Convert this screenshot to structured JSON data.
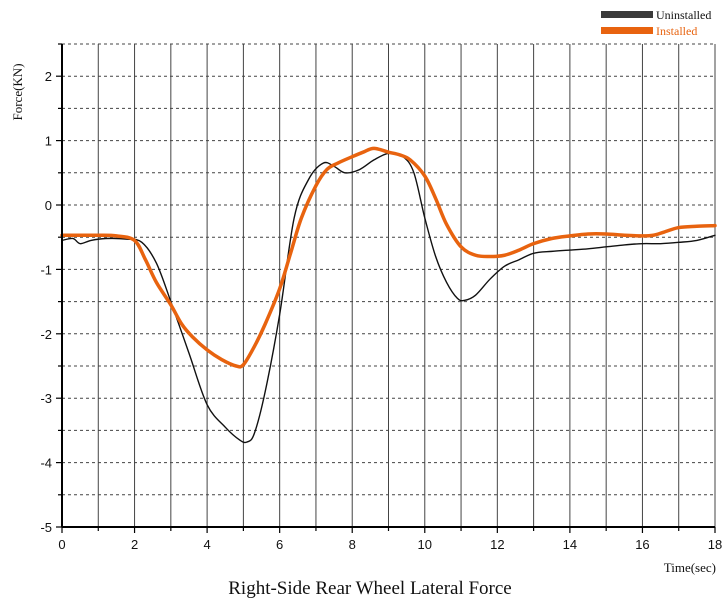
{
  "chart_data": {
    "type": "line",
    "title": "Right-Side Rear Wheel Lateral Force",
    "xlabel": "Time(sec)",
    "ylabel": "Force(KN)",
    "xlim": [
      0,
      18
    ],
    "ylim": [
      -5,
      2.5
    ],
    "x_ticks": [
      0,
      2,
      4,
      6,
      8,
      10,
      12,
      14,
      16,
      18
    ],
    "y_ticks": [
      -5,
      -4,
      -3,
      -2,
      -1,
      0,
      1,
      2
    ],
    "grid": "on",
    "legend_position": "top-right",
    "series": [
      {
        "name": "Uninstalled",
        "color": "#111111",
        "x": [
          0,
          0.3,
          0.5,
          0.8,
          1.2,
          1.8,
          2.2,
          2.6,
          3.0,
          3.5,
          4.0,
          4.5,
          4.9,
          5.1,
          5.3,
          5.6,
          6.0,
          6.4,
          6.8,
          7.2,
          7.5,
          7.8,
          8.2,
          8.6,
          9.0,
          9.4,
          9.7,
          10.0,
          10.3,
          10.6,
          10.9,
          11.1,
          11.4,
          11.8,
          12.2,
          12.6,
          13.0,
          13.5,
          14.0,
          14.5,
          15.0,
          15.5,
          16.0,
          16.5,
          17.0,
          17.5,
          18.0
        ],
        "y": [
          -0.55,
          -0.52,
          -0.6,
          -0.55,
          -0.52,
          -0.53,
          -0.58,
          -0.9,
          -1.5,
          -2.3,
          -3.1,
          -3.45,
          -3.65,
          -3.68,
          -3.55,
          -2.9,
          -1.7,
          -0.2,
          0.4,
          0.65,
          0.6,
          0.5,
          0.55,
          0.7,
          0.8,
          0.75,
          0.5,
          -0.2,
          -0.8,
          -1.2,
          -1.45,
          -1.48,
          -1.4,
          -1.15,
          -0.95,
          -0.85,
          -0.75,
          -0.72,
          -0.7,
          -0.68,
          -0.65,
          -0.62,
          -0.6,
          -0.6,
          -0.58,
          -0.55,
          -0.47
        ]
      },
      {
        "name": "Installed",
        "color": "#e8630f",
        "x": [
          0,
          0.5,
          1.0,
          1.5,
          2.0,
          2.3,
          2.6,
          3.0,
          3.3,
          3.6,
          4.0,
          4.4,
          4.8,
          5.0,
          5.3,
          5.6,
          6.0,
          6.3,
          6.6,
          7.0,
          7.3,
          7.6,
          8.0,
          8.3,
          8.6,
          9.0,
          9.3,
          9.6,
          10.0,
          10.3,
          10.6,
          11.0,
          11.4,
          11.8,
          12.2,
          12.6,
          13.0,
          13.5,
          14.0,
          14.5,
          15.0,
          15.5,
          16.0,
          16.3,
          16.6,
          17.0,
          17.5,
          18.0
        ],
        "y": [
          -0.47,
          -0.47,
          -0.47,
          -0.48,
          -0.55,
          -0.85,
          -1.2,
          -1.55,
          -1.85,
          -2.05,
          -2.25,
          -2.4,
          -2.5,
          -2.48,
          -2.2,
          -1.85,
          -1.3,
          -0.75,
          -0.2,
          0.3,
          0.55,
          0.65,
          0.75,
          0.82,
          0.88,
          0.82,
          0.78,
          0.7,
          0.45,
          0.1,
          -0.3,
          -0.65,
          -0.78,
          -0.8,
          -0.78,
          -0.7,
          -0.6,
          -0.52,
          -0.48,
          -0.45,
          -0.45,
          -0.47,
          -0.48,
          -0.47,
          -0.42,
          -0.35,
          -0.33,
          -0.32
        ]
      }
    ]
  }
}
